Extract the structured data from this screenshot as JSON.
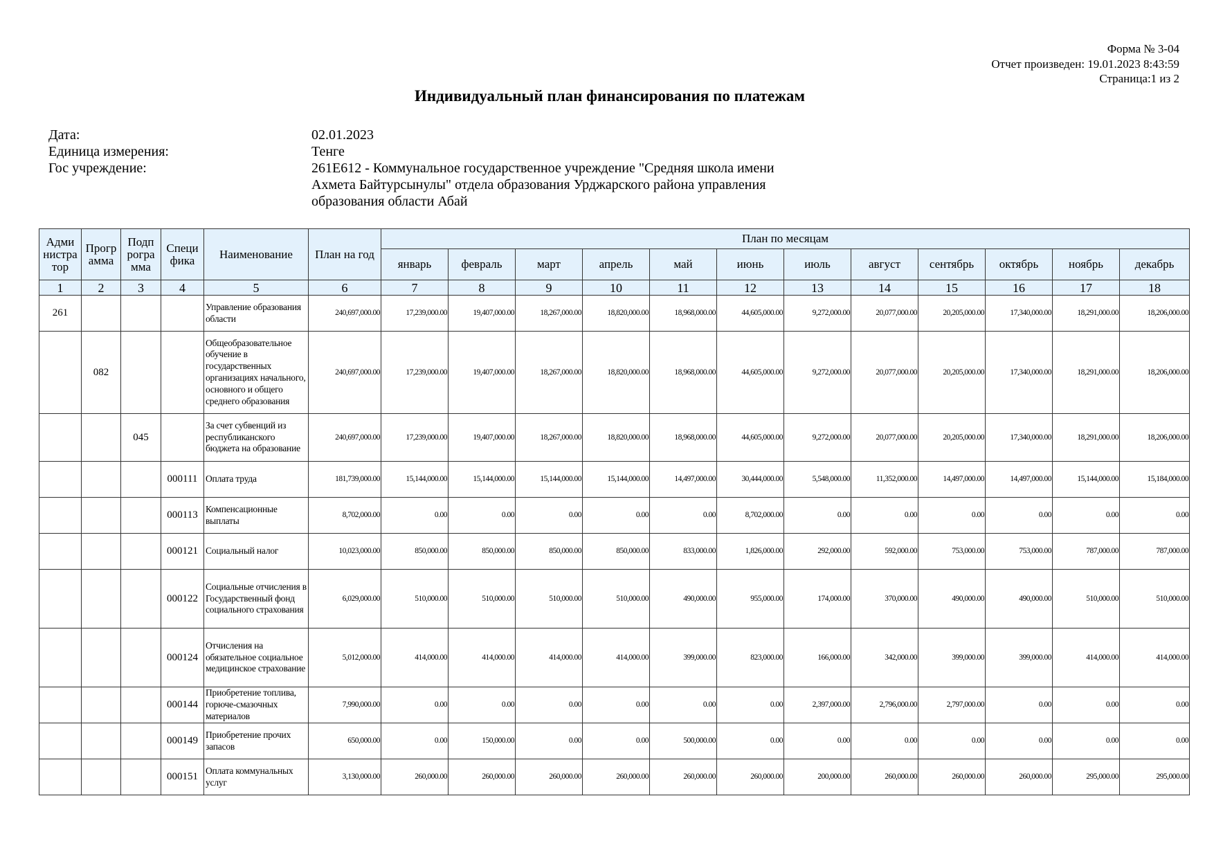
{
  "header": {
    "form_number": "Форма № 3-04",
    "generated": "Отчет произведен: 19.01.2023 8:43:59",
    "page": "Страница:1 из 2",
    "title": "Индивидуальный план финансирования по платежам"
  },
  "info": [
    {
      "label": "Дата:",
      "value": "02.01.2023"
    },
    {
      "label": "Единица измерения:",
      "value": "Тенге"
    },
    {
      "label": "Гос учреждение:",
      "value": "261E612 - Коммунальное государственное учреждение \"Средняя школа имени Ахмета Байтурсынулы\" отдела образования Урджарского района управления образования области Абай"
    }
  ],
  "table": {
    "columns": {
      "admin": "Адми нистра тор",
      "program": "Прогр амма",
      "subprogram": "Подп рогра мма",
      "specifics": "Специ фика",
      "name": "Наименование",
      "plan_year": "План на год",
      "plan_months": "План по месяцам"
    },
    "months": [
      "январь",
      "февраль",
      "март",
      "апрель",
      "май",
      "июнь",
      "июль",
      "август",
      "сентябрь",
      "октябрь",
      "ноябрь",
      "декабрь"
    ],
    "column_numbers": [
      "1",
      "2",
      "3",
      "4",
      "5",
      "6",
      "7",
      "8",
      "9",
      "10",
      "11",
      "12",
      "13",
      "14",
      "15",
      "16",
      "17",
      "18"
    ],
    "rows": [
      {
        "admin": "261",
        "program": "",
        "subprogram": "",
        "specifics": "",
        "name": "Управление образования области",
        "plan_year": "240,697,000.00",
        "months": [
          "17,239,000.00",
          "19,407,000.00",
          "18,267,000.00",
          "18,820,000.00",
          "18,968,000.00",
          "44,605,000.00",
          "9,272,000.00",
          "20,077,000.00",
          "20,205,000.00",
          "17,340,000.00",
          "18,291,000.00",
          "18,206,000.00"
        ]
      },
      {
        "admin": "",
        "program": "082",
        "subprogram": "",
        "specifics": "",
        "name": "Общеобразовательное обучение в государственных организациях начального, основного и общего среднего образования",
        "plan_year": "240,697,000.00",
        "months": [
          "17,239,000.00",
          "19,407,000.00",
          "18,267,000.00",
          "18,820,000.00",
          "18,968,000.00",
          "44,605,000.00",
          "9,272,000.00",
          "20,077,000.00",
          "20,205,000.00",
          "17,340,000.00",
          "18,291,000.00",
          "18,206,000.00"
        ]
      },
      {
        "admin": "",
        "program": "",
        "subprogram": "045",
        "specifics": "",
        "name": "За счет субвенций из республиканского бюджета на образование",
        "plan_year": "240,697,000.00",
        "months": [
          "17,239,000.00",
          "19,407,000.00",
          "18,267,000.00",
          "18,820,000.00",
          "18,968,000.00",
          "44,605,000.00",
          "9,272,000.00",
          "20,077,000.00",
          "20,205,000.00",
          "17,340,000.00",
          "18,291,000.00",
          "18,206,000.00"
        ]
      },
      {
        "admin": "",
        "program": "",
        "subprogram": "",
        "specifics": "000111",
        "name": "Оплата труда",
        "plan_year": "181,739,000.00",
        "months": [
          "15,144,000.00",
          "15,144,000.00",
          "15,144,000.00",
          "15,144,000.00",
          "14,497,000.00",
          "30,444,000.00",
          "5,548,000.00",
          "11,352,000.00",
          "14,497,000.00",
          "14,497,000.00",
          "15,144,000.00",
          "15,184,000.00"
        ]
      },
      {
        "admin": "",
        "program": "",
        "subprogram": "",
        "specifics": "000113",
        "name": "Компенсационные выплаты",
        "plan_year": "8,702,000.00",
        "months": [
          "0.00",
          "0.00",
          "0.00",
          "0.00",
          "0.00",
          "8,702,000.00",
          "0.00",
          "0.00",
          "0.00",
          "0.00",
          "0.00",
          "0.00"
        ]
      },
      {
        "admin": "",
        "program": "",
        "subprogram": "",
        "specifics": "000121",
        "name": "Социальный налог",
        "plan_year": "10,023,000.00",
        "months": [
          "850,000.00",
          "850,000.00",
          "850,000.00",
          "850,000.00",
          "833,000.00",
          "1,826,000.00",
          "292,000.00",
          "592,000.00",
          "753,000.00",
          "753,000.00",
          "787,000.00",
          "787,000.00"
        ]
      },
      {
        "admin": "",
        "program": "",
        "subprogram": "",
        "specifics": "000122",
        "name": "Социальные отчисления в Государственный фонд социального страхования",
        "plan_year": "6,029,000.00",
        "months": [
          "510,000.00",
          "510,000.00",
          "510,000.00",
          "510,000.00",
          "490,000.00",
          "955,000.00",
          "174,000.00",
          "370,000.00",
          "490,000.00",
          "490,000.00",
          "510,000.00",
          "510,000.00"
        ]
      },
      {
        "admin": "",
        "program": "",
        "subprogram": "",
        "specifics": "000124",
        "name": "Отчисления на обязательное социальное медицинское страхование",
        "plan_year": "5,012,000.00",
        "months": [
          "414,000.00",
          "414,000.00",
          "414,000.00",
          "414,000.00",
          "399,000.00",
          "823,000.00",
          "166,000.00",
          "342,000.00",
          "399,000.00",
          "399,000.00",
          "414,000.00",
          "414,000.00"
        ]
      },
      {
        "admin": "",
        "program": "",
        "subprogram": "",
        "specifics": "000144",
        "name": "Приобретение топлива, горюче-смазочных материалов",
        "plan_year": "7,990,000.00",
        "months": [
          "0.00",
          "0.00",
          "0.00",
          "0.00",
          "0.00",
          "0.00",
          "2,397,000.00",
          "2,796,000.00",
          "2,797,000.00",
          "0.00",
          "0.00",
          "0.00"
        ]
      },
      {
        "admin": "",
        "program": "",
        "subprogram": "",
        "specifics": "000149",
        "name": "Приобретение прочих запасов",
        "plan_year": "650,000.00",
        "months": [
          "0.00",
          "150,000.00",
          "0.00",
          "0.00",
          "500,000.00",
          "0.00",
          "0.00",
          "0.00",
          "0.00",
          "0.00",
          "0.00",
          "0.00"
        ]
      },
      {
        "admin": "",
        "program": "",
        "subprogram": "",
        "specifics": "000151",
        "name": "Оплата коммунальных услуг",
        "plan_year": "3,130,000.00",
        "months": [
          "260,000.00",
          "260,000.00",
          "260,000.00",
          "260,000.00",
          "260,000.00",
          "260,000.00",
          "200,000.00",
          "260,000.00",
          "260,000.00",
          "260,000.00",
          "295,000.00",
          "295,000.00"
        ]
      }
    ]
  }
}
